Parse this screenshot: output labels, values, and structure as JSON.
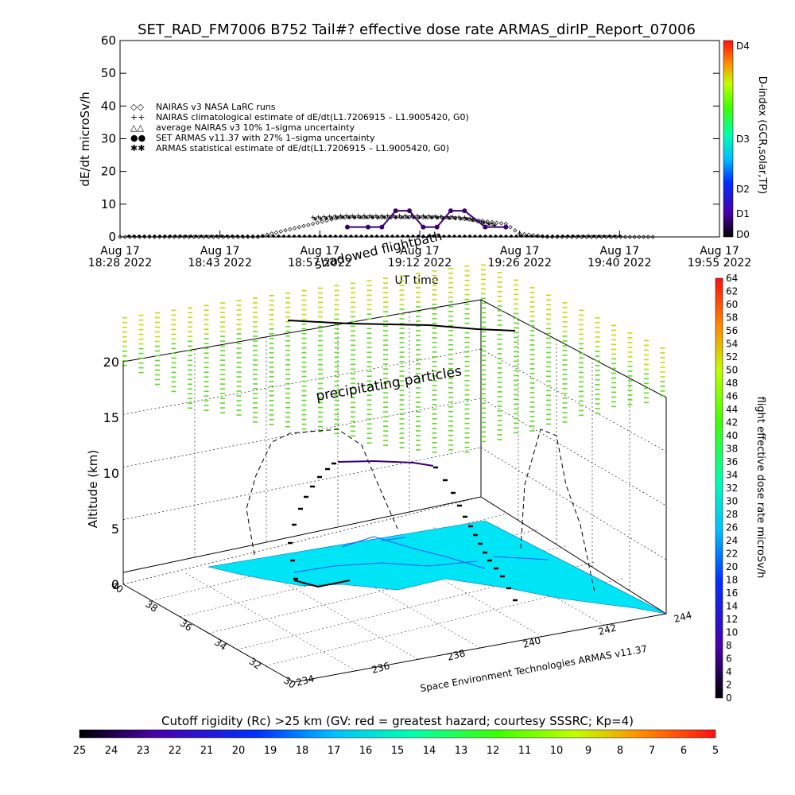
{
  "colors": {
    "rainbow": [
      "#000000",
      "#3b0071",
      "#4a00a8",
      "#0010e0",
      "#0070ff",
      "#00c0ff",
      "#00ffe0",
      "#00ff80",
      "#40ff00",
      "#c0ff00",
      "#ffd000",
      "#ff8000",
      "#ff2000"
    ],
    "surface": "#00e5f5",
    "nairas_line": "#000000",
    "armas_dot": "#3b0071",
    "track": "#000000",
    "cutoff_text": "#1a1a1a"
  },
  "top": {
    "title": "SET_RAD_FM7006  B752 Tail#? effective dose rate ARMAS_dirIP_Report_07006",
    "ylabel": "dE/dt microSv/h",
    "xlabel": "UT time",
    "dindex_label": "D-index (GCR,solar,TP)",
    "dindex_ticks": [
      "D4",
      "D3",
      "D2",
      "D1",
      "D0"
    ],
    "legend": [
      {
        "sym": "◇◇",
        "text": "NAIRAS v3 NASA LaRC runs"
      },
      {
        "sym": "++",
        "text": "NAIRAS climatological estimate of dE/dt(L1.7206915 – L1.9005420, G0)"
      },
      {
        "sym": "△△",
        "text": "average NAIRAS v3 10% 1–sigma uncertainty"
      },
      {
        "sym": "●●",
        "text": "SET ARMAS v11.37 with 27% 1–sigma uncertainty"
      },
      {
        "sym": "✱✱",
        "text": "ARMAS statistical estimate of dE/dt(L1.7206915 – L1.9005420, G0)"
      }
    ]
  },
  "chart_data": [
    {
      "type": "line",
      "title": "SET_RAD_FM7006  B752 Tail#? effective dose rate ARMAS_dirIP_Report_07006",
      "ylabel": "dE/dt microSv/h",
      "xlabel": "UT time",
      "ylim": [
        0,
        60
      ],
      "yticks": [
        0,
        10,
        20,
        30,
        40,
        50,
        60
      ],
      "xticks": [
        {
          "l1": "Aug 17",
          "l2": "18:28 2022"
        },
        {
          "l1": "Aug 17",
          "l2": "18:43 2022"
        },
        {
          "l1": "Aug 17",
          "l2": "18:57 2022"
        },
        {
          "l1": "Aug 17",
          "l2": "19:12 2022"
        },
        {
          "l1": "Aug 17",
          "l2": "19:26 2022"
        },
        {
          "l1": "Aug 17",
          "l2": "19:40 2022"
        },
        {
          "l1": "Aug 17",
          "l2": "19:55 2022"
        }
      ],
      "xlim": [
        "18:28",
        "19:55"
      ],
      "series": [
        {
          "name": "NAIRAS v3 NASA LaRC runs",
          "x": [
            "18:28",
            "18:38",
            "18:48",
            "18:50",
            "18:52",
            "18:54",
            "18:56",
            "18:58",
            "19:00",
            "19:04",
            "19:08",
            "19:12",
            "19:16",
            "19:20",
            "19:24",
            "19:26",
            "19:30",
            "19:40",
            "19:46"
          ],
          "y": [
            0,
            0,
            0,
            1,
            2,
            3,
            4,
            5,
            6,
            6,
            6,
            6,
            6,
            5,
            4,
            1,
            0,
            0,
            0
          ]
        },
        {
          "name": "NAIRAS climatological estimate of dE/dt(L1.7206915 – L1.9005420, G0)",
          "x": [
            "18:56",
            "19:00",
            "19:06",
            "19:12",
            "19:18",
            "19:22"
          ],
          "y": [
            6,
            6.5,
            6.5,
            6.5,
            6,
            4
          ]
        },
        {
          "name": "SET ARMAS v11.37 with 27% 1–sigma uncertainty",
          "x": [
            "19:01",
            "19:04",
            "19:06",
            "19:08",
            "19:10",
            "19:12",
            "19:14",
            "19:16",
            "19:18",
            "19:21",
            "19:24"
          ],
          "y": [
            3,
            3,
            3,
            8,
            8,
            3,
            3,
            8,
            8,
            3,
            3
          ]
        },
        {
          "name": "ARMAS statistical estimate of dE/dt(L1.7206915 – L1.9005420, G0)",
          "x": [
            "18:56",
            "19:00",
            "19:06",
            "19:12",
            "19:18",
            "19:22"
          ],
          "y": [
            5.5,
            6,
            6,
            6,
            5.5,
            3.5
          ]
        }
      ],
      "dindex": {
        "label": "D-index (GCR,solar,TP)",
        "ticks": [
          "D4",
          "D3",
          "D2",
          "D1",
          "D0"
        ]
      }
    },
    {
      "type": "scatter",
      "title": "",
      "zlabel": "Altitude (km)",
      "zticks": [
        0,
        5,
        10,
        15,
        20
      ],
      "yticks": [
        40,
        38,
        36,
        34,
        32,
        30
      ],
      "xticks": [
        234,
        236,
        238,
        240,
        242,
        244
      ],
      "annotations": [
        "shadowed flightpath",
        "precipitating particles"
      ],
      "colorbar": {
        "label": "flight effective dose rate microSv/h",
        "min": 0,
        "max": 64,
        "ticks": [
          64,
          62,
          60,
          58,
          56,
          54,
          52,
          50,
          48,
          46,
          44,
          42,
          40,
          38,
          36,
          34,
          32,
          30,
          28,
          26,
          24,
          22,
          20,
          18,
          16,
          14,
          12,
          10,
          8,
          6,
          4,
          2,
          0
        ]
      },
      "credit": "Space Environment Technologies ARMAS v11.37"
    },
    {
      "type": "heatmap",
      "title": "Cutoff rigidity (Rc) >25 km (GV: red = greatest hazard; courtesy SSSRC; Kp=4)",
      "ticks": [
        25,
        24,
        23,
        22,
        21,
        20,
        19,
        18,
        17,
        16,
        15,
        14,
        13,
        12,
        11,
        10,
        9,
        8,
        7,
        6,
        5
      ]
    }
  ],
  "bottom": {
    "cutoff_title": "Cutoff rigidity (Rc) >25 km (GV: red = greatest hazard; courtesy SSSRC; Kp=4)",
    "cutoff_ticks": [
      "25",
      "24",
      "23",
      "22",
      "21",
      "20",
      "19",
      "18",
      "17",
      "16",
      "15",
      "14",
      "13",
      "12",
      "11",
      "10",
      "9",
      "8",
      "7",
      "6",
      "5"
    ]
  }
}
